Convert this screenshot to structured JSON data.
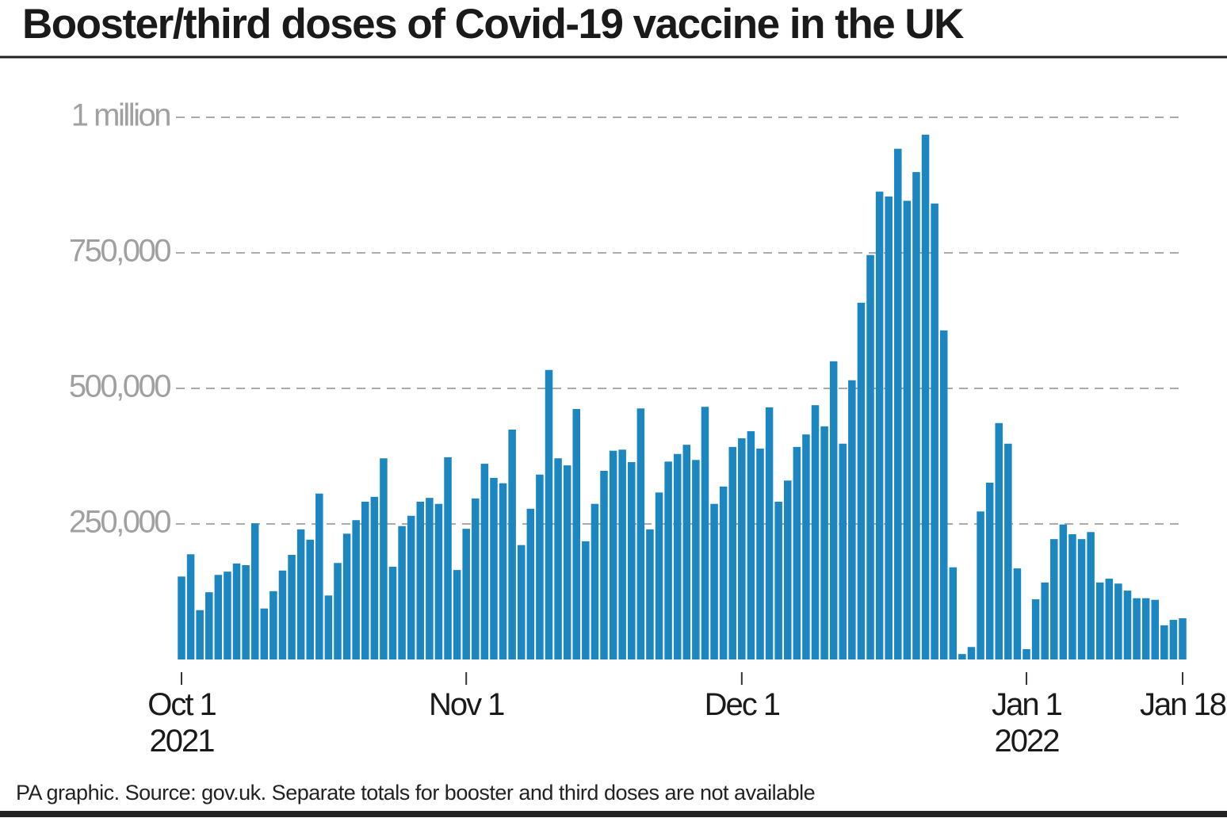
{
  "chart_data": {
    "type": "bar",
    "title": "Booster/third doses of Covid-19 vaccine in the UK",
    "footnote": "PA graphic. Source: gov.uk. Separate totals for booster and third doses are not available",
    "color": "#1b86bf",
    "grid": true,
    "x": [
      "2021-10-01",
      "2021-10-02",
      "2021-10-03",
      "2021-10-04",
      "2021-10-05",
      "2021-10-06",
      "2021-10-07",
      "2021-10-08",
      "2021-10-09",
      "2021-10-10",
      "2021-10-11",
      "2021-10-12",
      "2021-10-13",
      "2021-10-14",
      "2021-10-15",
      "2021-10-16",
      "2021-10-17",
      "2021-10-18",
      "2021-10-19",
      "2021-10-20",
      "2021-10-21",
      "2021-10-22",
      "2021-10-23",
      "2021-10-24",
      "2021-10-25",
      "2021-10-26",
      "2021-10-27",
      "2021-10-28",
      "2021-10-29",
      "2021-10-30",
      "2021-10-31",
      "2021-11-01",
      "2021-11-02",
      "2021-11-03",
      "2021-11-04",
      "2021-11-05",
      "2021-11-06",
      "2021-11-07",
      "2021-11-08",
      "2021-11-09",
      "2021-11-10",
      "2021-11-11",
      "2021-11-12",
      "2021-11-13",
      "2021-11-14",
      "2021-11-15",
      "2021-11-16",
      "2021-11-17",
      "2021-11-18",
      "2021-11-19",
      "2021-11-20",
      "2021-11-21",
      "2021-11-22",
      "2021-11-23",
      "2021-11-24",
      "2021-11-25",
      "2021-11-26",
      "2021-11-27",
      "2021-11-28",
      "2021-11-29",
      "2021-11-30",
      "2021-12-01",
      "2021-12-02",
      "2021-12-03",
      "2021-12-04",
      "2021-12-05",
      "2021-12-06",
      "2021-12-07",
      "2021-12-08",
      "2021-12-09",
      "2021-12-10",
      "2021-12-11",
      "2021-12-12",
      "2021-12-13",
      "2021-12-14",
      "2021-12-15",
      "2021-12-16",
      "2021-12-17",
      "2021-12-18",
      "2021-12-19",
      "2021-12-20",
      "2021-12-21",
      "2021-12-22",
      "2021-12-23",
      "2021-12-24",
      "2021-12-25",
      "2021-12-26",
      "2021-12-27",
      "2021-12-28",
      "2021-12-29",
      "2021-12-30",
      "2021-12-31",
      "2022-01-01",
      "2022-01-02",
      "2022-01-03",
      "2022-01-04",
      "2022-01-05",
      "2022-01-06",
      "2022-01-07",
      "2022-01-08",
      "2022-01-09",
      "2022-01-10",
      "2022-01-11",
      "2022-01-12",
      "2022-01-13",
      "2022-01-14",
      "2022-01-15",
      "2022-01-16",
      "2022-01-17",
      "2022-01-18"
    ],
    "values": [
      153000,
      194000,
      91000,
      124000,
      156000,
      162000,
      177000,
      174000,
      251000,
      94000,
      126000,
      164000,
      193000,
      240000,
      221000,
      306000,
      118000,
      178000,
      232000,
      257000,
      291000,
      300000,
      371000,
      171000,
      246000,
      265000,
      291000,
      298000,
      287000,
      373000,
      165000,
      241000,
      297000,
      361000,
      335000,
      325000,
      424000,
      211000,
      278000,
      341000,
      534000,
      371000,
      358000,
      462000,
      218000,
      287000,
      348000,
      385000,
      387000,
      364000,
      463000,
      240000,
      308000,
      365000,
      379000,
      396000,
      368000,
      466000,
      287000,
      319000,
      392000,
      408000,
      421000,
      389000,
      465000,
      291000,
      330000,
      392000,
      415000,
      469000,
      430000,
      550000,
      398000,
      515000,
      658000,
      746000,
      863000,
      854000,
      942000,
      846000,
      899000,
      968000,
      841000,
      607000,
      170000,
      10000,
      23000,
      273000,
      326000,
      436000,
      398000,
      168000,
      19000,
      111000,
      142000,
      222000,
      249000,
      231000,
      222000,
      235000,
      142000,
      149000,
      140000,
      127000,
      113000,
      113000,
      110000,
      63000,
      73000,
      76000
    ],
    "xlim": [
      "2021-10-01",
      "2022-01-18"
    ],
    "xticks": [
      {
        "value": "2021-10-01",
        "label": "Oct 1\n2021"
      },
      {
        "value": "2021-11-01",
        "label": "Nov 1"
      },
      {
        "value": "2021-12-01",
        "label": "Dec 1"
      },
      {
        "value": "2022-01-01",
        "label": "Jan 1\n2022"
      },
      {
        "value": "2022-01-18",
        "label": "Jan 18"
      }
    ],
    "ylim": [
      0,
      1000000
    ],
    "yticks": [
      {
        "value": 250000,
        "label": "250,000"
      },
      {
        "value": 500000,
        "label": "500,000"
      },
      {
        "value": 750000,
        "label": "750,000"
      },
      {
        "value": 1000000,
        "label": "1 million"
      }
    ]
  }
}
